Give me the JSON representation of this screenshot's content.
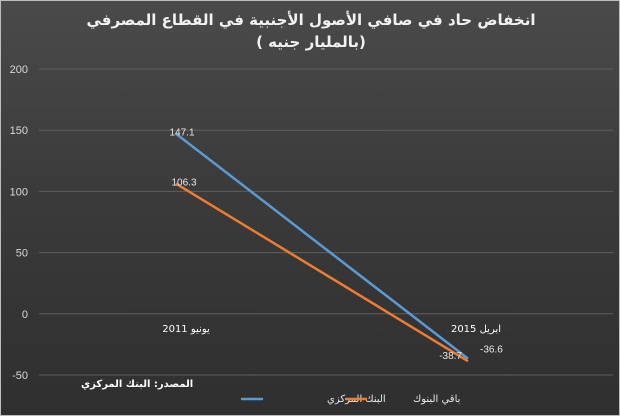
{
  "chart_data": {
    "type": "line",
    "title_line1": "انخفاض حاد في صافي الأصول الأجنبية في القطاع المصرفي",
    "title_line2": "(بالمليار جنيه )",
    "categories": [
      "يونيو 2011",
      "ابريل 2015"
    ],
    "series": [
      {
        "name": "البنك المركزي",
        "values": [
          147.1,
          -36.6
        ],
        "labels": [
          "147.1",
          "-36.6"
        ],
        "color": "#5b9bd5"
      },
      {
        "name": "باقي البنوك",
        "values": [
          106.3,
          -38.7
        ],
        "labels": [
          "106.3",
          "-38.7"
        ],
        "color": "#ed7d31"
      }
    ],
    "yticks": [
      "200",
      "150",
      "100",
      "50",
      "0",
      "-50"
    ],
    "ylim": [
      -50,
      200
    ],
    "grid": true,
    "legend": "bottom",
    "source": "المصدر: البنك المركزي"
  }
}
